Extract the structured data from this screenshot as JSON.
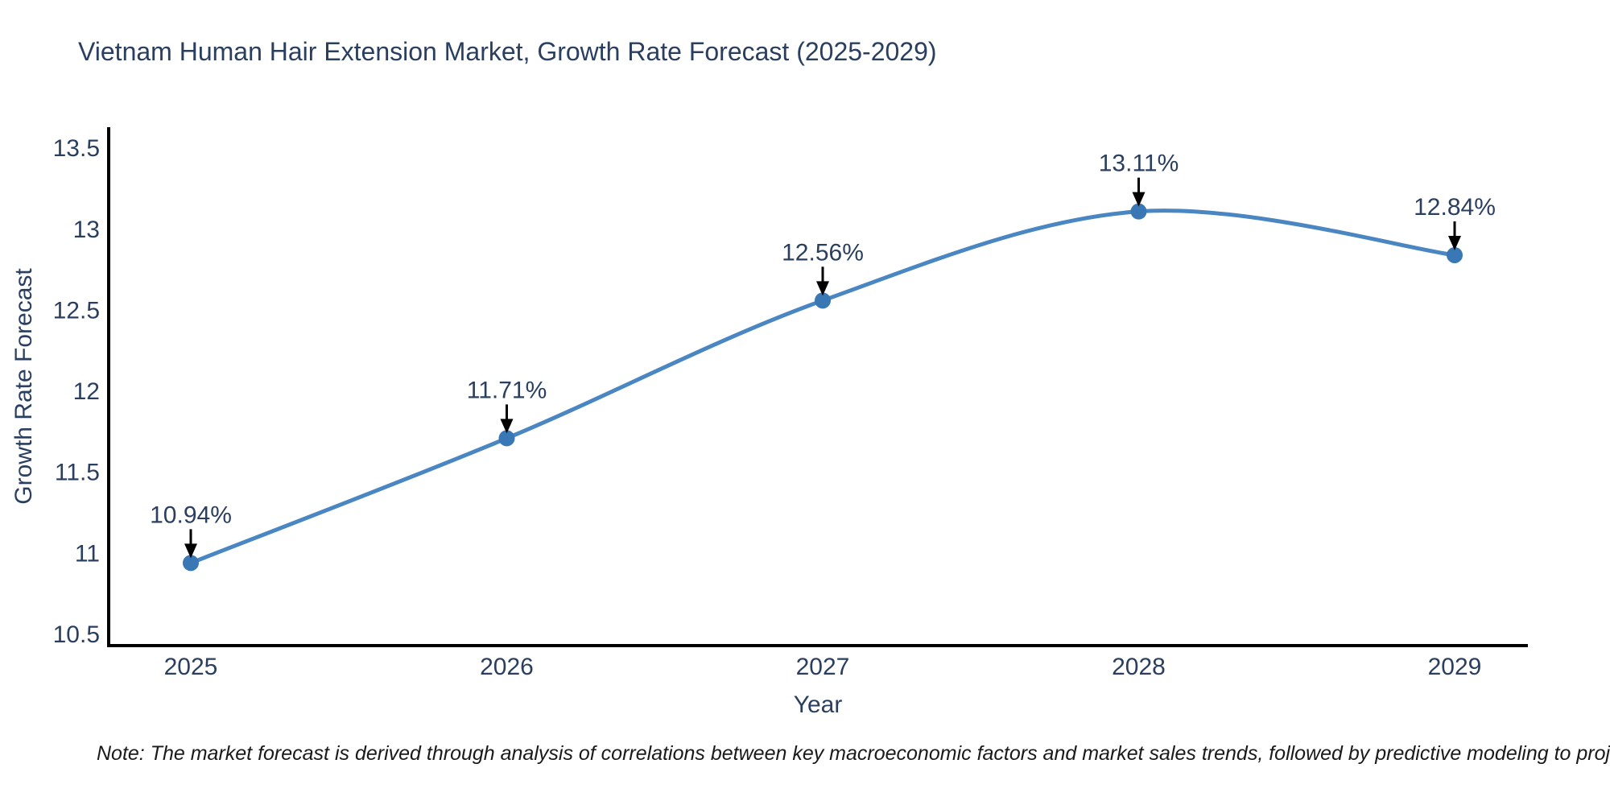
{
  "chart_data": {
    "type": "line",
    "title": "Vietnam Human Hair Extension Market, Growth Rate Forecast (2025-2029)",
    "categories": [
      "2025",
      "2026",
      "2027",
      "2028",
      "2029"
    ],
    "values": [
      10.94,
      11.71,
      12.56,
      13.11,
      12.84
    ],
    "point_labels": [
      "10.94%",
      "11.71%",
      "12.56%",
      "13.11%",
      "12.84%"
    ],
    "xlabel": "Year",
    "ylabel": "Growth Rate Forecast",
    "ylim": [
      10.43,
      13.63
    ],
    "yticks": [
      10.5,
      11,
      11.5,
      12,
      12.5,
      13,
      13.5
    ],
    "ytick_labels": [
      "10.5",
      "11",
      "11.5",
      "12",
      "12.5",
      "13",
      "13.5"
    ],
    "grid": false,
    "legend_position": "none",
    "line_style": "spline",
    "marker_style": "circle",
    "colors": {
      "line": "#4a86c1",
      "marker": "#3a78b5",
      "axis": "#000000",
      "chart_text": "#2a3f5f",
      "arrow": "#000000",
      "note_text": "#1a1a1a",
      "background": "#ffffff"
    }
  },
  "footnote": "Note: The market forecast is derived through analysis of correlations between key macroeconomic factors and market sales trends, followed by predictive modeling to project future sal"
}
